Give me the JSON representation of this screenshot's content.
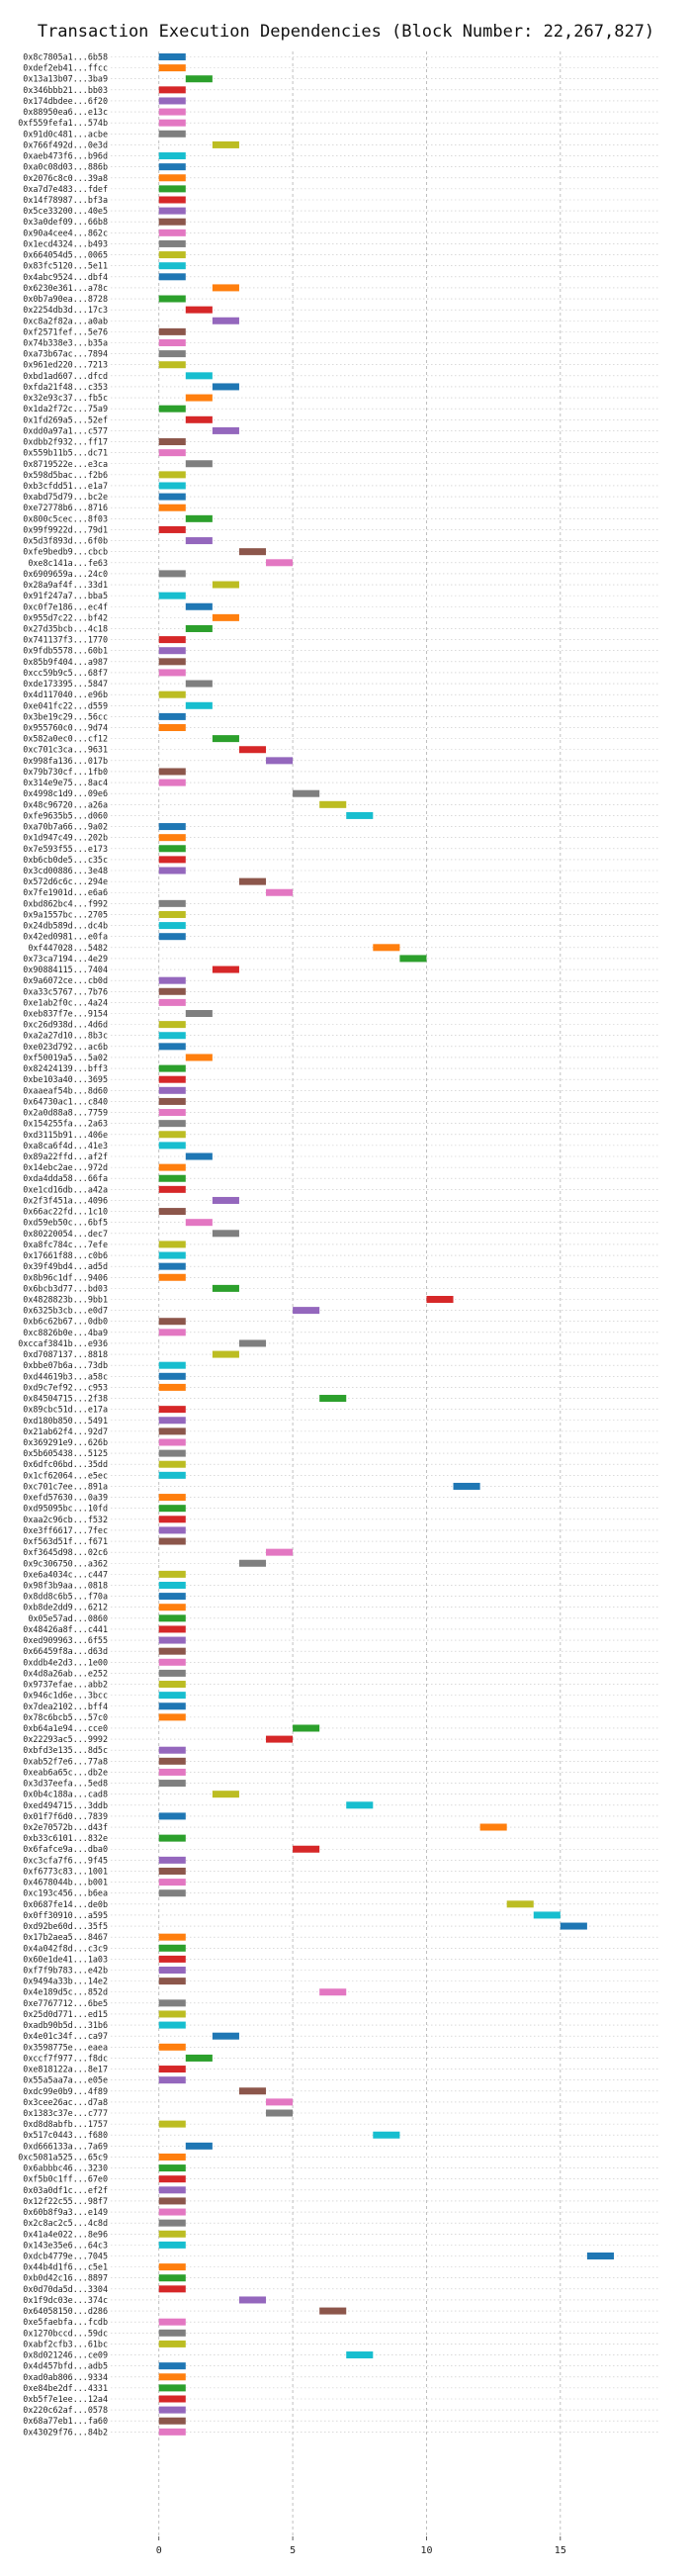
{
  "chart_data": {
    "type": "bar",
    "orientation": "horizontal",
    "title": "Transaction Execution Dependencies (Block Number: 22,267,827)",
    "xlabel": "",
    "ylabel": "",
    "xlim": [
      -1.8,
      18.7
    ],
    "xticks": [
      0,
      5,
      10,
      15
    ],
    "grid": true,
    "legend": "none",
    "bar_length": 1,
    "categories": [
      "0x8c7805a1...6b58",
      "0xdef2eb41...ffcc",
      "0x13a13b07...3ba9",
      "0x346bbb21...bb03",
      "0x174dbdee...6f20",
      "0x88950ea6...e13c",
      "0xf559fefa1...574b",
      "0x91d0c481...acbe",
      "0x766f492d...0e3d",
      "0xaeb473f6...b96d",
      "0xa0c08d03...886b",
      "0x2076c8c0...39a8",
      "0xa7d7e483...fdef",
      "0x14f78987...bf3a",
      "0x5ce33200...40e5",
      "0x3a0def09...66b8",
      "0x90a4cee4...862c",
      "0x1ecd4324...b493",
      "0x664054d5...0065",
      "0x83fc5120...5e11",
      "0x4abc9524...dbf4",
      "0x6230e361...a78c",
      "0x0b7a90ea...8728",
      "0x2254db3d...17c3",
      "0xc8a2f82a...a0ab",
      "0xf2571fef...5e76",
      "0x74b338e3...b35a",
      "0xa73b67ac...7894",
      "0x961ed220...7213",
      "0xbd1ad607...dfcd",
      "0xfda21f48...c353",
      "0x32e93c37...fb5c",
      "0x1da2f72c...75a9",
      "0x1fd269a5...52ef",
      "0xdd0a97a1...c577",
      "0xdbb2f932...ff17",
      "0x559b11b5...dc71",
      "0x8719522e...e3ca",
      "0x598d5bac...f2b6",
      "0xb3cfdd51...e1a7",
      "0xabd75d79...bc2e",
      "0xe72778b6...8716",
      "0x800c5cec...8f03",
      "0x99f9922d...79d1",
      "0x5d3f893d...6f0b",
      "0xfe9bedb9...cbcb",
      "0xe8c141a...fe63",
      "0x6909659a...24c0",
      "0x28a9af4f...33d1",
      "0x91f247a7...bba5",
      "0xc0f7e186...ec4f",
      "0x955d7c22...bf42",
      "0x27d35bcb...4c18",
      "0x741137f3...1770",
      "0x9fdb5578...60b1",
      "0x85b9f404...a987",
      "0xcc59b9c5...68f7",
      "0xde173395...5847",
      "0x4d117040...e96b",
      "0xe041fc22...d559",
      "0x3be19c29...56cc",
      "0x955760c0...9d74",
      "0x582a0ec0...cf12",
      "0xc701c3ca...9631",
      "0x998fa136...017b",
      "0x79b730cf...1fb0",
      "0x314e9e75...8ac4",
      "0x4998c1d9...09e6",
      "0x48c96720...a26a",
      "0xfe9635b5...d060",
      "0xa70b7a66...9a02",
      "0x1d947c49...202b",
      "0x7e593f55...e173",
      "0xb6cb0de5...c35c",
      "0x3cd00886...3e48",
      "0x572d6c6c...294e",
      "0x7fe1901d...e6a6",
      "0xbd862bc4...f992",
      "0x9a1557bc...2705",
      "0x24db589d...dc4b",
      "0x42ed0981...e0fa",
      "0xf447028...5482",
      "0x73ca7194...4e29",
      "0x90884115...7404",
      "0x9a6072ce...cb0d",
      "0xa33c5767...7b76",
      "0xe1ab2f0c...4a24",
      "0xeb837f7e...9154",
      "0xc26d938d...4d6d",
      "0xa2a27d10...8b3c",
      "0xe023d792...ac6b",
      "0xf50019a5...5a02",
      "0x82424139...bff3",
      "0xbe103a40...3695",
      "0xaaeaf54b...8d60",
      "0x64730ac1...c840",
      "0x2a0d88a8...7759",
      "0x154255fa...2a63",
      "0xd3115b91...406e",
      "0xa8ca6f4d...41e3",
      "0x89a22ffd...af2f",
      "0x14ebc2ae...972d",
      "0xda4dda58...66fa",
      "0xe1cd16db...a42a",
      "0x2f3f451a...4096",
      "0x66ac22fd...1c10",
      "0xd59eb50c...6bf5",
      "0x80220054...dec7",
      "0xa8fc784c...7efe",
      "0x17661f88...c0b6",
      "0x39f49bd4...ad5d",
      "0x8b96c1df...9406",
      "0x6bcb3d77...bd03",
      "0x4828823b...9bb1",
      "0x6325b3cb...e0d7",
      "0xb6c62b67...0db0",
      "0xc8826b0e...4ba9",
      "0xccaf3841b...e936",
      "0xd7087137...8818",
      "0xbbe07b6a...73db",
      "0xd44619b3...a58c",
      "0xd9c7ef92...c953",
      "0x84504715...2f38",
      "0x89cbc51d...e17a",
      "0xd180b850...5491",
      "0x21ab62f4...92d7",
      "0x369291e9...626b",
      "0x5b605438...5125",
      "0x6dfc06bd...35dd",
      "0x1cf62064...e5ec",
      "0xc701c7ee...891a",
      "0xefd57630...0a39",
      "0xd95095bc...10fd",
      "0xaa2c96cb...f532",
      "0xe3ff6617...7fec",
      "0xf563d51f...f671",
      "0xf3645d98...02c6",
      "0x9c306750...a362",
      "0xe6a4034c...c447",
      "0x98f3b9aa...0818",
      "0x8dd8c6b5...f70a",
      "0xb8de2dd9...6212",
      "0x05e57ad...0860",
      "0x48426a8f...c441",
      "0xed909963...6f55",
      "0x66459f8a...d63d",
      "0xddb4e2d3...1e00",
      "0x4d8a26ab...e252",
      "0x9737efae...abb2",
      "0x946c1d6e...3bcc",
      "0x7dea2102...bff4",
      "0x78c6bcb5...57c0",
      "0xb64a1e94...cce0",
      "0x22293ac5...9992",
      "0xbfd3e135...8d5c",
      "0xab52f7e6...77a8",
      "0xeab6a65c...db2e",
      "0x3d37eefa...5ed8",
      "0x0b4c188a...cad8",
      "0xed494715...3ddb",
      "0x01f7f6d0...7839",
      "0x2e70572b...d43f",
      "0xb33c6101...832e",
      "0x6fafce9a...dba0",
      "0xc3cfa7f6...9f45",
      "0xf6773c83...1001",
      "0x4678044b...b001",
      "0xc193c456...b6ea",
      "0x0687fe14...de0b",
      "0x0ff30910...a595",
      "0xd92be60d...35f5",
      "0x17b2aea5...8467",
      "0x4a042f8d...c3c9",
      "0x60e1de41...1a03",
      "0xf7f9b783...e42b",
      "0x9494a33b...14e2",
      "0x4e189d5c...852d",
      "0xe7767712...6be5",
      "0x25d0d771...ed15",
      "0xadb90b5d...31b6",
      "0x4e01c34f...ca97",
      "0x3598775e...eaea",
      "0xccf7f977...f8dc",
      "0xe818122a...8e17",
      "0x55a5aa7a...e05e",
      "0xdc99e0b9...4f89",
      "0x3cee26ac...d7a8",
      "0x1383c37e...c777",
      "0xd8d8abfb...1757",
      "0x517c0443...f680",
      "0xd666133a...7a69",
      "0xc5081a525...65c9",
      "0x6abbbc46...3230",
      "0xf5b0c1ff...67e0",
      "0x03a0df1c...ef2f",
      "0x12f22c55...98f7",
      "0x60b8f9a3...e149",
      "0x2c8ac2c5...4c8d",
      "0x41a4e022...8e96",
      "0x143e35e6...64c3",
      "0xdcb4779e...7045",
      "0x44b4d1f6...c5e1",
      "0xb0d42c16...8897",
      "0x0d70da5d...3304",
      "0x1f9dc03e...374c",
      "0x64058150...d286",
      "0xe5faebfa...fcdb",
      "0x1270bccd...59dc",
      "0xabf2cfb3...61bc",
      "0x8d021246...ce09",
      "0x4d457bfd...adb5",
      "0xad0ab806...9334",
      "0xe84be2df...4331",
      "0xb5f7e1ee...12a4",
      "0x220c62af...0578",
      "0x68a77eb1...fa60",
      "0x43029f76...84b2"
    ],
    "values": [
      0,
      0,
      1,
      0,
      0,
      0,
      0,
      0,
      2,
      0,
      0,
      0,
      0,
      0,
      0,
      0,
      0,
      0,
      0,
      0,
      0,
      2,
      0,
      1,
      2,
      0,
      0,
      0,
      0,
      1,
      2,
      1,
      0,
      1,
      2,
      0,
      0,
      1,
      0,
      0,
      0,
      0,
      1,
      0,
      1,
      3,
      4,
      0,
      2,
      0,
      1,
      2,
      1,
      0,
      0,
      0,
      0,
      1,
      0,
      1,
      0,
      0,
      2,
      3,
      4,
      0,
      0,
      5,
      6,
      7,
      0,
      0,
      0,
      0,
      0,
      3,
      4,
      0,
      0,
      0,
      0,
      8,
      9,
      2,
      0,
      0,
      0,
      1,
      0,
      0,
      0,
      1,
      0,
      0,
      0,
      0,
      0,
      0,
      0,
      0,
      1,
      0,
      0,
      0,
      2,
      0,
      1,
      2,
      0,
      0,
      0,
      0,
      2,
      10,
      5,
      0,
      0,
      3,
      2,
      0,
      0,
      0,
      6,
      0,
      0,
      0,
      0,
      0,
      0,
      0,
      11,
      0,
      0,
      0,
      0,
      0,
      4,
      3,
      0,
      0,
      0,
      0,
      0,
      0,
      0,
      0,
      0,
      0,
      0,
      0,
      0,
      0,
      5,
      4,
      0,
      0,
      0,
      0,
      2,
      7,
      0,
      12,
      0,
      5,
      0,
      0,
      0,
      0,
      13,
      14,
      15,
      0,
      0,
      0,
      0,
      0,
      6,
      0,
      0,
      0,
      2,
      0,
      1,
      0,
      0,
      3,
      4,
      4,
      0,
      8,
      1,
      0,
      0,
      0,
      0,
      0,
      0,
      0,
      0,
      0,
      16,
      0,
      0,
      0,
      3,
      6,
      0,
      0,
      0,
      7,
      0,
      0,
      0,
      0,
      0,
      0,
      0
    ],
    "colors": [
      "#1f77b4",
      "#ff7f0e",
      "#2ca02c",
      "#d62728",
      "#9467bd",
      "#e377c2",
      "#e377c2",
      "#7f7f7f",
      "#bcbd22",
      "#17becf",
      "#1f77b4",
      "#ff7f0e",
      "#2ca02c",
      "#d62728",
      "#9467bd",
      "#8c564b",
      "#e377c2",
      "#7f7f7f",
      "#bcbd22",
      "#17becf",
      "#1f77b4",
      "#ff7f0e",
      "#2ca02c",
      "#d62728",
      "#9467bd",
      "#8c564b",
      "#e377c2",
      "#7f7f7f",
      "#bcbd22",
      "#17becf",
      "#1f77b4",
      "#ff7f0e",
      "#2ca02c",
      "#d62728",
      "#9467bd",
      "#8c564b",
      "#e377c2",
      "#7f7f7f",
      "#bcbd22",
      "#17becf",
      "#1f77b4",
      "#ff7f0e",
      "#2ca02c",
      "#d62728",
      "#9467bd",
      "#8c564b",
      "#e377c2",
      "#7f7f7f",
      "#bcbd22",
      "#17becf",
      "#1f77b4",
      "#ff7f0e",
      "#2ca02c",
      "#d62728",
      "#9467bd",
      "#8c564b",
      "#e377c2",
      "#7f7f7f",
      "#bcbd22",
      "#17becf",
      "#1f77b4",
      "#ff7f0e",
      "#2ca02c",
      "#d62728",
      "#9467bd",
      "#8c564b",
      "#e377c2",
      "#7f7f7f",
      "#bcbd22",
      "#17becf",
      "#1f77b4",
      "#ff7f0e",
      "#2ca02c",
      "#d62728",
      "#9467bd",
      "#8c564b",
      "#e377c2",
      "#7f7f7f",
      "#bcbd22",
      "#17becf",
      "#1f77b4",
      "#ff7f0e",
      "#2ca02c",
      "#d62728",
      "#9467bd",
      "#8c564b",
      "#e377c2",
      "#7f7f7f",
      "#bcbd22",
      "#17becf",
      "#1f77b4",
      "#ff7f0e",
      "#2ca02c",
      "#d62728",
      "#9467bd",
      "#8c564b",
      "#e377c2",
      "#7f7f7f",
      "#bcbd22",
      "#17becf",
      "#1f77b4",
      "#ff7f0e",
      "#2ca02c",
      "#d62728",
      "#9467bd",
      "#8c564b",
      "#e377c2",
      "#7f7f7f",
      "#bcbd22",
      "#17becf",
      "#1f77b4",
      "#ff7f0e",
      "#2ca02c",
      "#d62728",
      "#9467bd",
      "#8c564b",
      "#e377c2",
      "#7f7f7f",
      "#bcbd22",
      "#17becf",
      "#1f77b4",
      "#ff7f0e",
      "#2ca02c",
      "#d62728",
      "#9467bd",
      "#8c564b",
      "#e377c2",
      "#7f7f7f",
      "#bcbd22",
      "#17becf",
      "#1f77b4",
      "#ff7f0e",
      "#2ca02c",
      "#d62728",
      "#9467bd",
      "#8c564b",
      "#e377c2",
      "#7f7f7f",
      "#bcbd22",
      "#17becf",
      "#1f77b4",
      "#ff7f0e",
      "#2ca02c",
      "#d62728",
      "#9467bd",
      "#8c564b",
      "#e377c2",
      "#7f7f7f",
      "#bcbd22",
      "#17becf",
      "#1f77b4",
      "#ff7f0e",
      "#2ca02c",
      "#d62728",
      "#9467bd",
      "#8c564b",
      "#e377c2",
      "#7f7f7f",
      "#bcbd22",
      "#17becf",
      "#1f77b4",
      "#ff7f0e",
      "#2ca02c",
      "#d62728",
      "#9467bd",
      "#8c564b",
      "#e377c2",
      "#7f7f7f",
      "#bcbd22",
      "#17becf",
      "#1f77b4",
      "#ff7f0e",
      "#2ca02c",
      "#d62728",
      "#9467bd",
      "#8c564b",
      "#e377c2",
      "#7f7f7f",
      "#bcbd22",
      "#17becf",
      "#1f77b4",
      "#ff7f0e",
      "#2ca02c",
      "#d62728",
      "#9467bd",
      "#8c564b",
      "#e377c2",
      "#7f7f7f",
      "#bcbd22",
      "#17becf",
      "#1f77b4",
      "#ff7f0e",
      "#2ca02c",
      "#d62728",
      "#9467bd",
      "#8c564b",
      "#e377c2",
      "#7f7f7f",
      "#bcbd22",
      "#17becf",
      "#1f77b4",
      "#ff7f0e",
      "#2ca02c",
      "#d62728",
      "#9467bd",
      "#8c564b",
      "#e377c2",
      "#7f7f7f",
      "#bcbd22",
      "#17becf",
      "#1f77b4",
      "#ff7f0e",
      "#2ca02c",
      "#d62728",
      "#9467bd",
      "#8c564b",
      "#e377c2"
    ]
  }
}
